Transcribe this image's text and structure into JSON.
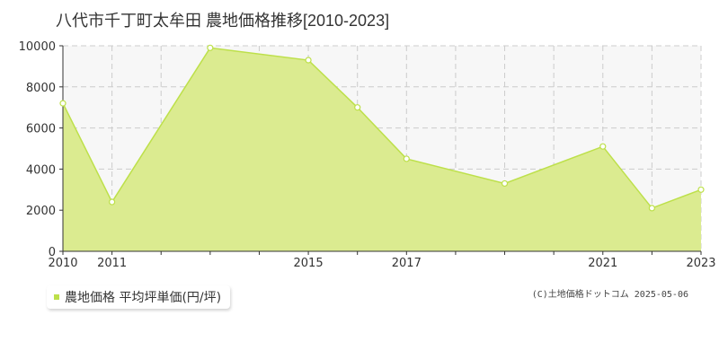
{
  "chart_data": {
    "type": "area",
    "title": "八代市千丁町太牟田 農地価格推移[2010-2023]",
    "xlabel": "",
    "ylabel": "",
    "x": [
      2010,
      2011,
      2012,
      2013,
      2014,
      2015,
      2016,
      2017,
      2018,
      2019,
      2020,
      2021,
      2022,
      2023
    ],
    "x_tick_labels": [
      "2010",
      "2011",
      "2015",
      "2017",
      "2021",
      "2023"
    ],
    "x_tick_values": [
      2010,
      2011,
      2015,
      2017,
      2021,
      2023
    ],
    "points_x": [
      2010,
      2011,
      2013,
      2015,
      2016,
      2017,
      2019,
      2021,
      2022,
      2023
    ],
    "points_y": [
      7200,
      2400,
      9900,
      9300,
      7000,
      4500,
      3300,
      5100,
      2100,
      3000
    ],
    "ylim": [
      0,
      10000
    ],
    "y_ticks": [
      0,
      2000,
      4000,
      6000,
      8000,
      10000
    ],
    "xlim": [
      2010,
      2023
    ],
    "grid": true,
    "legend_position": "bottom-left",
    "series": [
      {
        "name": "農地価格 平均坪単価(円/坪)",
        "line_color": "#bde04a",
        "fill_color": "#dbeb90"
      }
    ]
  },
  "footer": {
    "credit": "(C)土地価格ドットコム 2025-05-06"
  },
  "colors": {
    "plot_background": "#f7f7f7",
    "grid": "#cccccc",
    "axis": "#333333"
  }
}
